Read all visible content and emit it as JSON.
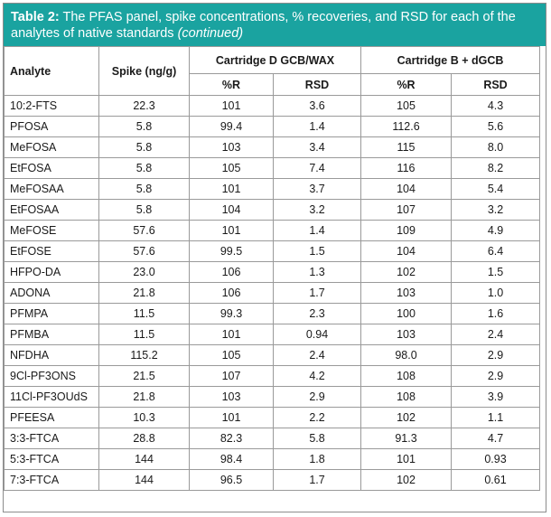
{
  "title": {
    "label": "Table 2:",
    "text": " The PFAS panel, spike concentrations, % recoveries, and RSD for each of the analytes of native standards ",
    "continued": "(continued)"
  },
  "headers": {
    "analyte": "Analyte",
    "spike": "Spike (ng/g)",
    "group_d": "Cartridge D GCB/WAX",
    "group_b": "Cartridge B + dGCB",
    "r": "%R",
    "rsd": "RSD"
  },
  "rows": [
    [
      "10:2-FTS",
      "22.3",
      "101",
      "3.6",
      "105",
      "4.3"
    ],
    [
      "PFOSA",
      "5.8",
      "99.4",
      "1.4",
      "112.6",
      "5.6"
    ],
    [
      "MeFOSA",
      "5.8",
      "103",
      "3.4",
      "115",
      "8.0"
    ],
    [
      "EtFOSA",
      "5.8",
      "105",
      "7.4",
      "116",
      "8.2"
    ],
    [
      "MeFOSAA",
      "5.8",
      "101",
      "3.7",
      "104",
      "5.4"
    ],
    [
      "EtFOSAA",
      "5.8",
      "104",
      "3.2",
      "107",
      "3.2"
    ],
    [
      "MeFOSE",
      "57.6",
      "101",
      "1.4",
      "109",
      "4.9"
    ],
    [
      "EtFOSE",
      "57.6",
      "99.5",
      "1.5",
      "104",
      "6.4"
    ],
    [
      "HFPO-DA",
      "23.0",
      "106",
      "1.3",
      "102",
      "1.5"
    ],
    [
      "ADONA",
      "21.8",
      "106",
      "1.7",
      "103",
      "1.0"
    ],
    [
      "PFMPA",
      "11.5",
      "99.3",
      "2.3",
      "100",
      "1.6"
    ],
    [
      "PFMBA",
      "11.5",
      "101",
      "0.94",
      "103",
      "2.4"
    ],
    [
      "NFDHA",
      "115.2",
      "105",
      "2.4",
      "98.0",
      "2.9"
    ],
    [
      "9Cl-PF3ONS",
      "21.5",
      "107",
      "4.2",
      "108",
      "2.9"
    ],
    [
      "11Cl-PF3OUdS",
      "21.8",
      "103",
      "2.9",
      "108",
      "3.9"
    ],
    [
      "PFEESA",
      "10.3",
      "101",
      "2.2",
      "102",
      "1.1"
    ],
    [
      "3:3-FTCA",
      "28.8",
      "82.3",
      "5.8",
      "91.3",
      "4.7"
    ],
    [
      "5:3-FTCA",
      "144",
      "98.4",
      "1.8",
      "101",
      "0.93"
    ],
    [
      "7:3-FTCA",
      "144",
      "96.5",
      "1.7",
      "102",
      "0.61"
    ]
  ],
  "colors": {
    "title_bg": "#1aa3a0",
    "border": "#9a9a9a"
  }
}
